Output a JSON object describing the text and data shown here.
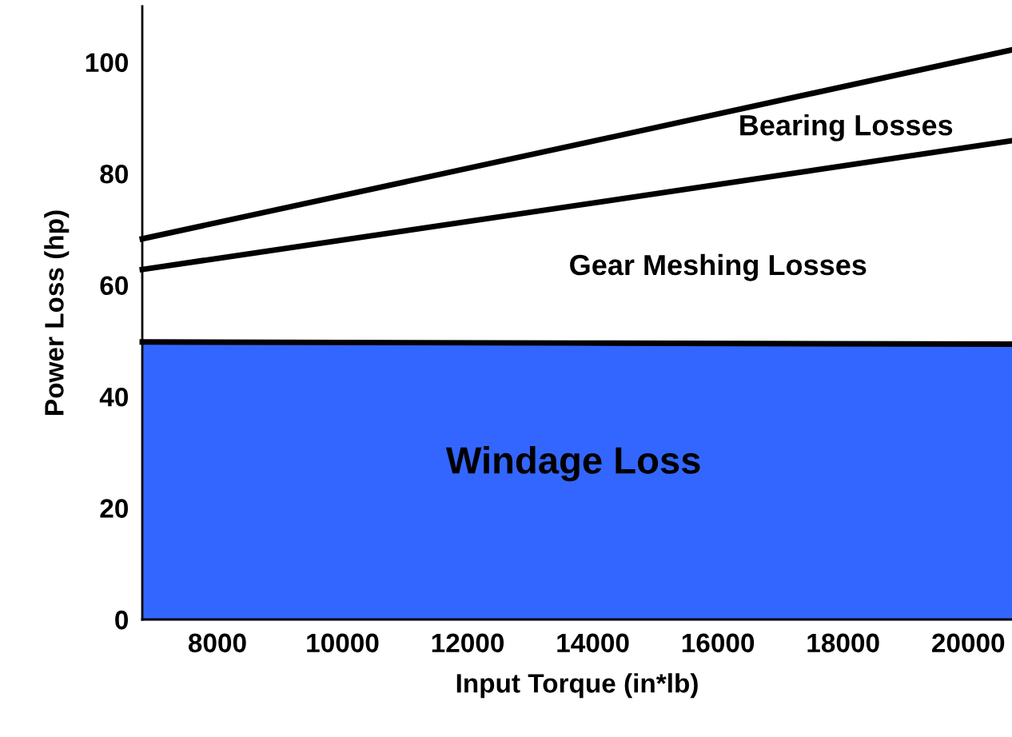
{
  "chart_data": {
    "type": "line",
    "xlabel": "Input Torque (in*lb)",
    "ylabel": "Power Loss (hp)",
    "x": [
      6800,
      13750,
      20700
    ],
    "series": [
      {
        "type": "area",
        "color": "#3366ff",
        "values": [
          49.8,
          49.6,
          49.4
        ]
      },
      {
        "color": "#000000",
        "values": [
          62.8,
          74.3,
          85.9
        ]
      },
      {
        "color": "#000000",
        "values": [
          68.3,
          85.2,
          102.2
        ]
      }
    ],
    "xlim": [
      6800,
      20700
    ],
    "ylim": [
      0,
      110
    ],
    "xticks": [
      8000,
      10000,
      12000,
      14000,
      16000,
      18000,
      20000
    ],
    "yticks": [
      0,
      20,
      40,
      60,
      80,
      100
    ],
    "grid": false,
    "legend": false,
    "marker": "none",
    "line_style": "solid",
    "annotations": [
      "Windage Loss",
      "Gear Meshing Losses",
      "Bearing Losses"
    ]
  }
}
